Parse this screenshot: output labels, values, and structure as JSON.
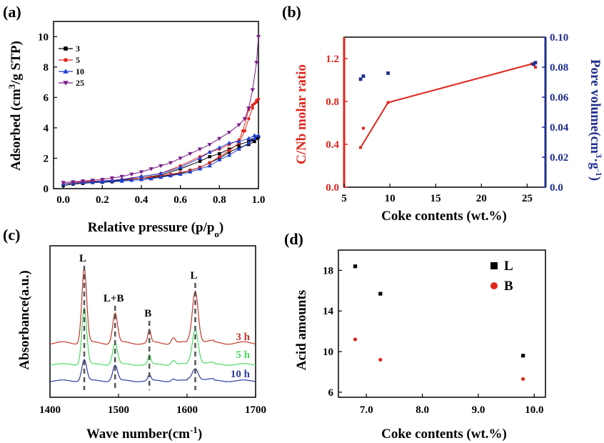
{
  "chart_data": [
    {
      "panel": "(a)",
      "type": "line",
      "xlabel": "Relative pressure (p/p",
      "xlabel_sub": "o",
      "xlabel_end": ")",
      "ylabel": "Adsorbed (cm",
      "ylabel_sup": "3",
      "ylabel_end": "/g STP)",
      "xlim": [
        -0.05,
        1.0
      ],
      "ylim": [
        0,
        11
      ],
      "xticks": [
        "0.0",
        "0.2",
        "0.4",
        "0.6",
        "0.8",
        "1.0"
      ],
      "yticks": [
        "0",
        "2",
        "4",
        "6",
        "8",
        "10"
      ],
      "series": [
        {
          "name": "3",
          "color": "#000000",
          "marker": "square",
          "x": [
            0.0,
            0.05,
            0.1,
            0.15,
            0.2,
            0.25,
            0.3,
            0.35,
            0.4,
            0.45,
            0.5,
            0.55,
            0.6,
            0.65,
            0.7,
            0.75,
            0.8,
            0.85,
            0.9,
            0.95,
            0.98,
            0.99,
            1.0,
            0.99,
            0.97,
            0.95,
            0.9,
            0.85,
            0.8,
            0.75,
            0.7,
            0.6,
            0.5,
            0.4,
            0.3,
            0.2,
            0.1
          ],
          "y": [
            0.2,
            0.3,
            0.35,
            0.4,
            0.42,
            0.45,
            0.5,
            0.55,
            0.6,
            0.7,
            0.8,
            0.9,
            1.0,
            1.2,
            1.4,
            1.7,
            2.0,
            2.4,
            2.7,
            2.9,
            3.1,
            3.3,
            3.4,
            3.3,
            3.2,
            3.1,
            2.9,
            2.6,
            2.3,
            2.1,
            1.8,
            1.3,
            0.9,
            0.7,
            0.55,
            0.45,
            0.35
          ]
        },
        {
          "name": "5",
          "color": "#e0261c",
          "marker": "circle",
          "x": [
            0.0,
            0.05,
            0.1,
            0.15,
            0.2,
            0.25,
            0.3,
            0.35,
            0.4,
            0.45,
            0.5,
            0.55,
            0.6,
            0.65,
            0.7,
            0.75,
            0.8,
            0.85,
            0.9,
            0.93,
            0.95,
            0.97,
            0.98,
            0.99,
            1.0,
            0.99,
            0.97,
            0.95,
            0.92,
            0.9,
            0.85,
            0.8,
            0.75,
            0.7,
            0.6,
            0.5,
            0.4,
            0.3,
            0.2,
            0.1
          ],
          "y": [
            0.3,
            0.4,
            0.45,
            0.5,
            0.5,
            0.55,
            0.6,
            0.65,
            0.7,
            0.75,
            0.85,
            0.95,
            1.05,
            1.2,
            1.4,
            1.7,
            2.1,
            2.5,
            3.0,
            3.8,
            4.6,
            5.3,
            5.6,
            5.8,
            5.9,
            5.7,
            5.5,
            5.2,
            3.8,
            3.2,
            2.9,
            2.6,
            2.4,
            2.1,
            1.5,
            1.0,
            0.8,
            0.6,
            0.5,
            0.4
          ]
        },
        {
          "name": "10",
          "color": "#1f3fd0",
          "marker": "triangle",
          "x": [
            0.0,
            0.05,
            0.1,
            0.15,
            0.2,
            0.25,
            0.3,
            0.35,
            0.4,
            0.45,
            0.5,
            0.55,
            0.6,
            0.65,
            0.7,
            0.75,
            0.8,
            0.85,
            0.9,
            0.95,
            0.98,
            1.0,
            0.98,
            0.95,
            0.9,
            0.85,
            0.8,
            0.75,
            0.7,
            0.6,
            0.5,
            0.4,
            0.3,
            0.2,
            0.1
          ],
          "y": [
            0.3,
            0.35,
            0.4,
            0.42,
            0.45,
            0.5,
            0.5,
            0.55,
            0.6,
            0.65,
            0.75,
            0.85,
            0.95,
            1.1,
            1.3,
            1.5,
            1.9,
            2.2,
            2.6,
            3.0,
            3.3,
            3.5,
            3.5,
            3.3,
            3.1,
            3.0,
            2.7,
            2.4,
            2.0,
            1.4,
            1.0,
            0.8,
            0.6,
            0.5,
            0.4
          ]
        },
        {
          "name": "25",
          "color": "#7a1f8a",
          "marker": "triangle-down",
          "x": [
            0.0,
            0.05,
            0.1,
            0.15,
            0.2,
            0.25,
            0.3,
            0.35,
            0.4,
            0.45,
            0.5,
            0.55,
            0.6,
            0.65,
            0.7,
            0.75,
            0.8,
            0.85,
            0.9,
            0.93,
            0.95,
            0.97,
            0.99,
            1.0
          ],
          "y": [
            0.4,
            0.45,
            0.5,
            0.55,
            0.6,
            0.7,
            0.8,
            0.95,
            1.1,
            1.3,
            1.5,
            1.7,
            2.0,
            2.3,
            2.6,
            2.9,
            3.3,
            3.7,
            4.2,
            4.6,
            5.3,
            6.5,
            8.3,
            10.0
          ]
        }
      ]
    },
    {
      "panel": "(b)",
      "type": "scatter",
      "xlabel": "Coke contents (wt.%)",
      "ylabel_left": "C/Nb molar ratio",
      "ylabel_right": "Pore volume(cm",
      "ylabel_right_sup": "3",
      "ylabel_right_mid": "·g",
      "ylabel_right_sup2": "-1",
      "ylabel_right_end": ")",
      "xlim": [
        5,
        27
      ],
      "ylim_left": [
        0,
        1.4
      ],
      "ylim_right": [
        0,
        0.1
      ],
      "xticks": [
        "5",
        "10",
        "15",
        "20",
        "25"
      ],
      "yticks_left": [
        "0.0",
        "0.4",
        "0.8",
        "1.2"
      ],
      "yticks_right": [
        "0.0",
        "0.02",
        "0.04",
        "0.06",
        "0.08",
        "0.10"
      ],
      "left_color": "#e0261c",
      "right_color": "#1f2d8c",
      "line_series": {
        "name": "C/Nb molar ratio",
        "x": [
          6.8,
          9.8,
          25.5
        ],
        "y": [
          0.37,
          0.79,
          1.15
        ]
      },
      "red_points": {
        "x": [
          7.1,
          25.9
        ],
        "y": [
          0.55,
          1.12
        ]
      },
      "blue_points": {
        "x": [
          6.8,
          7.1,
          9.8,
          25.7,
          25.9
        ],
        "y": [
          0.072,
          0.074,
          0.076,
          0.082,
          0.083
        ]
      }
    },
    {
      "panel": "(c)",
      "type": "line",
      "xlabel": "Wave number(cm",
      "xlabel_sup": "-1",
      "xlabel_end": ")",
      "ylabel": "Absorbance(a.u.)",
      "xlim": [
        1400,
        1700
      ],
      "xticks": [
        "1400",
        "1500",
        "1600",
        "1700"
      ],
      "peaks": [
        {
          "label": "L",
          "x": 1450
        },
        {
          "label": "L+B",
          "x": 1495
        },
        {
          "label": "B",
          "x": 1545
        },
        {
          "label": "L",
          "x": 1612
        }
      ],
      "series": [
        {
          "name": "3 h",
          "color": "#c0392b",
          "offset": 2.0
        },
        {
          "name": "5 h",
          "color": "#4cd964",
          "offset": 1.0
        },
        {
          "name": "10 h",
          "color": "#2c3e9e",
          "offset": 0.0
        }
      ]
    },
    {
      "panel": "(d)",
      "type": "scatter",
      "xlabel": "Coke contents (wt.%)",
      "ylabel": "Acid amounts",
      "xlim": [
        6.5,
        10.2
      ],
      "ylim": [
        5.5,
        20
      ],
      "xticks": [
        "7.0",
        "8.0",
        "9.0",
        "10.0"
      ],
      "yticks": [
        "6",
        "10",
        "14",
        "18"
      ],
      "series": [
        {
          "name": "L",
          "color": "#000000",
          "marker": "square",
          "x": [
            6.8,
            7.25,
            9.8
          ],
          "y": [
            18.4,
            15.7,
            9.6
          ]
        },
        {
          "name": "B",
          "color": "#e0261c",
          "marker": "circle",
          "x": [
            6.8,
            7.25,
            9.8
          ],
          "y": [
            11.2,
            9.2,
            7.3
          ]
        }
      ]
    }
  ]
}
